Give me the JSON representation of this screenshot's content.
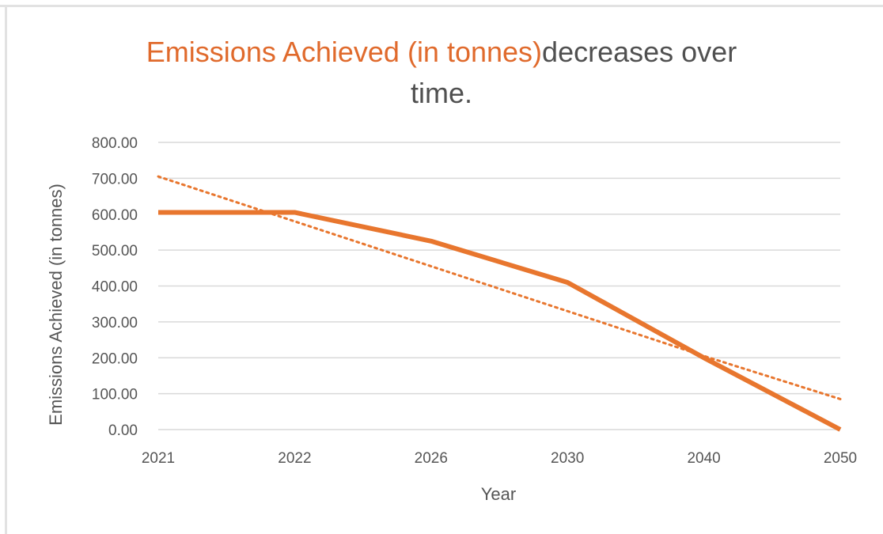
{
  "chart_data": {
    "type": "line",
    "title_highlight": "Emissions Achieved (in tonnes)",
    "title_rest": "decreases over",
    "title_line2": "time.",
    "xlabel": "Year",
    "ylabel": "Emissions Achieved (in tonnes)",
    "categories": [
      "2021",
      "2022",
      "2026",
      "2030",
      "2040",
      "2050"
    ],
    "series": [
      {
        "values": [
          605,
          605,
          525,
          410,
          200,
          0
        ],
        "color": "#e8762e"
      }
    ],
    "trendline": {
      "style": "dotted",
      "color": "#e8762e",
      "values": [
        705,
        580,
        455,
        330,
        205,
        85
      ]
    },
    "ylim": [
      0,
      800
    ],
    "yticks": [
      "0.00",
      "100.00",
      "200.00",
      "300.00",
      "400.00",
      "500.00",
      "600.00",
      "700.00",
      "800.00"
    ],
    "grid": true,
    "legend": "none"
  }
}
